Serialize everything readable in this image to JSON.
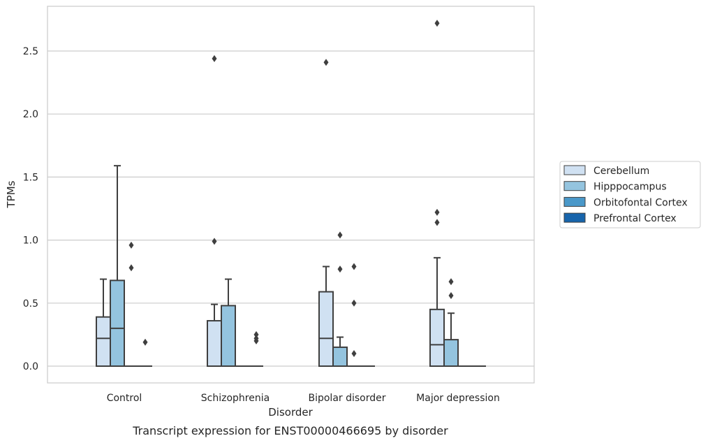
{
  "chart_data": {
    "type": "box",
    "caption": "Transcript expression for ENST00000466695 by disorder",
    "xlabel": "Disorder",
    "ylabel": "TPMs",
    "ylim": [
      -0.13,
      2.87
    ],
    "yticks": [
      0.0,
      0.5,
      1.0,
      1.5,
      2.0,
      2.5
    ],
    "ytick_labels": [
      "0.0",
      "0.5",
      "1.0",
      "1.5",
      "2.0",
      "2.5"
    ],
    "grid": true,
    "legend_position": "right",
    "categories": [
      "Control",
      "Schizophrenia",
      "Bipolar disorder",
      "Major depression"
    ],
    "series": [
      {
        "name": "Cerebellum",
        "color": "#d0e1f2",
        "boxes": [
          {
            "q1": 0.0,
            "median": 0.22,
            "q3": 0.39,
            "whisker_low": 0.0,
            "whisker_high": 0.69,
            "outliers": []
          },
          {
            "q1": 0.0,
            "median": 0.0,
            "q3": 0.36,
            "whisker_low": 0.0,
            "whisker_high": 0.49,
            "outliers": [
              0.99,
              2.44
            ]
          },
          {
            "q1": 0.0,
            "median": 0.22,
            "q3": 0.59,
            "whisker_low": 0.0,
            "whisker_high": 0.79,
            "outliers": [
              2.41
            ]
          },
          {
            "q1": 0.0,
            "median": 0.17,
            "q3": 0.45,
            "whisker_low": 0.0,
            "whisker_high": 0.86,
            "outliers": [
              1.14,
              1.22,
              2.72
            ]
          }
        ]
      },
      {
        "name": "Hipppocampus",
        "color": "#94c4df",
        "boxes": [
          {
            "q1": 0.0,
            "median": 0.3,
            "q3": 0.68,
            "whisker_low": 0.0,
            "whisker_high": 1.59,
            "outliers": []
          },
          {
            "q1": 0.0,
            "median": 0.0,
            "q3": 0.48,
            "whisker_low": 0.0,
            "whisker_high": 0.69,
            "outliers": []
          },
          {
            "q1": 0.0,
            "median": 0.0,
            "q3": 0.15,
            "whisker_low": 0.0,
            "whisker_high": 0.23,
            "outliers": [
              0.77,
              1.04
            ]
          },
          {
            "q1": 0.0,
            "median": 0.0,
            "q3": 0.21,
            "whisker_low": 0.0,
            "whisker_high": 0.42,
            "outliers": [
              0.56,
              0.67
            ]
          }
        ]
      },
      {
        "name": "Orbitofontal Cortex",
        "color": "#4a98c9",
        "boxes": [
          {
            "q1": 0.0,
            "median": 0.0,
            "q3": 0.0,
            "whisker_low": 0.0,
            "whisker_high": 0.0,
            "outliers": [
              0.78,
              0.96
            ]
          },
          {
            "q1": 0.0,
            "median": 0.0,
            "q3": 0.0,
            "whisker_low": 0.0,
            "whisker_high": 0.0,
            "outliers": []
          },
          {
            "q1": 0.0,
            "median": 0.0,
            "q3": 0.0,
            "whisker_low": 0.0,
            "whisker_high": 0.0,
            "outliers": [
              0.1,
              0.5,
              0.79
            ]
          },
          {
            "q1": 0.0,
            "median": 0.0,
            "q3": 0.0,
            "whisker_low": 0.0,
            "whisker_high": 0.0,
            "outliers": []
          }
        ]
      },
      {
        "name": "Prefrontal Cortex",
        "color": "#1764ab",
        "boxes": [
          {
            "q1": 0.0,
            "median": 0.0,
            "q3": 0.0,
            "whisker_low": 0.0,
            "whisker_high": 0.0,
            "outliers": [
              0.19
            ]
          },
          {
            "q1": 0.0,
            "median": 0.0,
            "q3": 0.0,
            "whisker_low": 0.0,
            "whisker_high": 0.0,
            "outliers": [
              0.2,
              0.22,
              0.25
            ]
          },
          {
            "q1": 0.0,
            "median": 0.0,
            "q3": 0.0,
            "whisker_low": 0.0,
            "whisker_high": 0.0,
            "outliers": []
          },
          {
            "q1": 0.0,
            "median": 0.0,
            "q3": 0.0,
            "whisker_low": 0.0,
            "whisker_high": 0.0,
            "outliers": []
          }
        ]
      }
    ],
    "colors": {
      "box_edge": "#3f3f3f",
      "grid": "#cccccc",
      "text": "#262626"
    }
  }
}
